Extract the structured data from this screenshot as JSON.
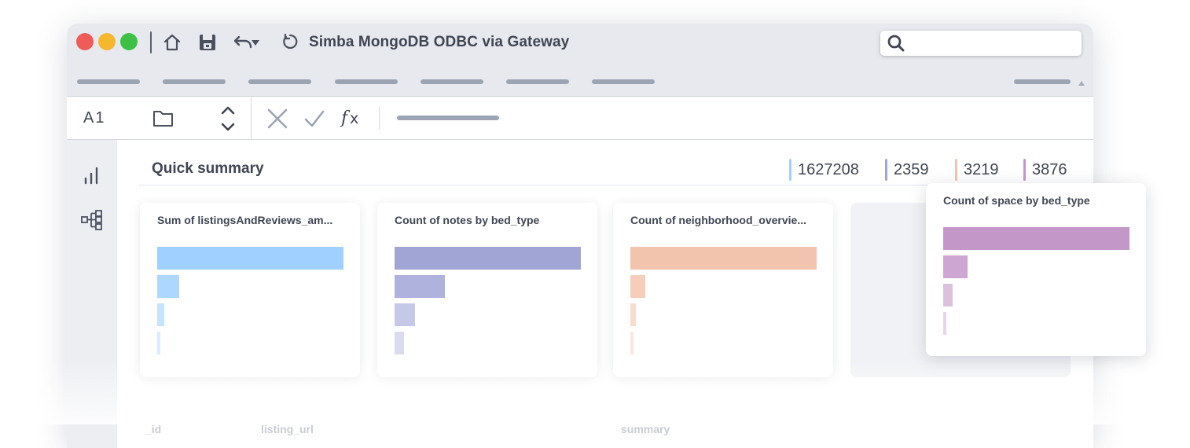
{
  "window": {
    "title": "Simba MongoDB ODBC via Gateway",
    "traffic_lights": [
      "#ef5b57",
      "#f5b72e",
      "#3cc146"
    ]
  },
  "toolbar": {
    "icons": [
      "home-icon",
      "save-icon",
      "undo-icon",
      "dropdown-caret-icon",
      "refresh-icon"
    ],
    "search": {
      "placeholder": ""
    }
  },
  "formula_bar": {
    "cell_ref": "A1",
    "icons": [
      "folder-icon",
      "stepper-icon",
      "cancel-icon",
      "confirm-icon",
      "function-icon"
    ]
  },
  "sidebar": {
    "icons": [
      "bar-chart-icon",
      "hierarchy-icon"
    ]
  },
  "summary": {
    "title": "Quick summary",
    "legend": [
      {
        "value": "1627208",
        "color": "#9fd0ff"
      },
      {
        "value": "2359",
        "color": "#a0a5d6"
      },
      {
        "value": "3219",
        "color": "#f3c4ad"
      },
      {
        "value": "3876",
        "color": "#c497c9"
      }
    ]
  },
  "charts": [
    {
      "title": "Sum of listingsAndReviews_am...",
      "color": "#9fd0ff",
      "values": [
        100,
        12,
        4,
        1.5
      ]
    },
    {
      "title": "Count of notes by bed_type",
      "color": "#a0a5d6",
      "values": [
        100,
        27,
        11,
        5
      ]
    },
    {
      "title": "Count of neighborhood_overvie...",
      "color": "#f3c4ad",
      "values": [
        100,
        8,
        3,
        1.5
      ]
    },
    {
      "title": "Count of space by bed_type",
      "color": "#c497c9",
      "values": [
        100,
        13,
        5,
        1.5
      ]
    }
  ],
  "columns": [
    "_id",
    "listing_url",
    "summary"
  ]
}
